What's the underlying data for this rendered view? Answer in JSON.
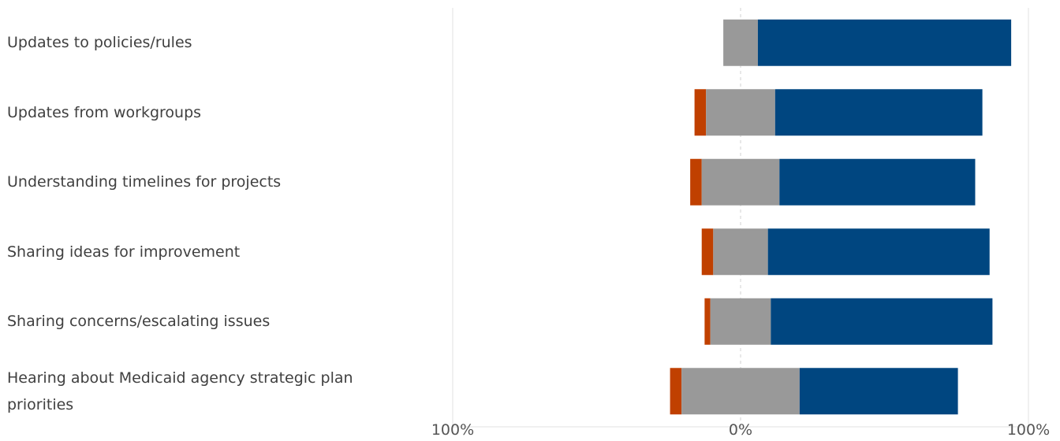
{
  "chart_data": {
    "type": "bar",
    "orientation": "horizontal",
    "stacked": "diverging",
    "title": "",
    "xlabel": "",
    "ylabel": "",
    "categories": [
      "Updates to policies/rules",
      "Updates from workgroups",
      "Understanding timelines for projects",
      "Sharing ideas for improvement",
      "Sharing concerns/escalating issues",
      "Hearing about Medicaid agency strategic plan priorities"
    ],
    "series": [
      {
        "values": [
          0,
          4,
          4,
          4,
          2,
          4
        ],
        "direction": "negative",
        "color": "#c04000"
      },
      {
        "values": [
          12,
          24,
          27,
          19,
          21,
          41
        ],
        "direction": "neutral",
        "color": "#999999"
      },
      {
        "values": [
          88,
          72,
          68,
          77,
          77,
          55
        ],
        "direction": "positive",
        "color": "#004680"
      }
    ],
    "xlim": [
      -100,
      100
    ],
    "x_ticks": [
      "100%",
      "0%",
      "100%"
    ],
    "grid": true,
    "legend": "none"
  }
}
